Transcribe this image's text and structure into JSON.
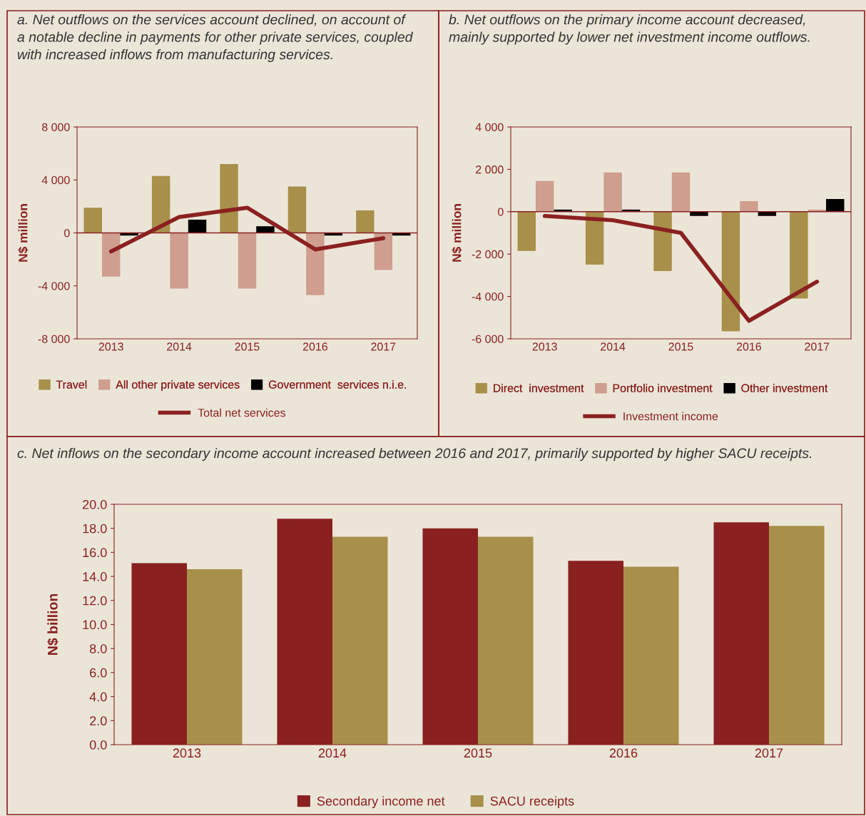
{
  "chart_data": [
    {
      "type": "bar",
      "title": "a. Net outflows on the services account declined, on account of a notable decline in payments for other private services, coupled with increased inflows from manufacturing services.",
      "ylabel": "N$ million",
      "categories": [
        "2013",
        "2014",
        "2015",
        "2016",
        "2017"
      ],
      "ylim": [
        -8000,
        8000
      ],
      "yticks": [
        {
          "value": -8000,
          "label": "-8 000"
        },
        {
          "value": -4000,
          "label": "-4 000"
        },
        0,
        {
          "value": 4000,
          "label": "4 000"
        },
        {
          "value": 8000,
          "label": "8 000"
        }
      ],
      "grid": false,
      "ref_lines": [
        {
          "axis": "y",
          "value": 0,
          "color": "#8b2020"
        }
      ],
      "legend": "bottom",
      "series": [
        {
          "name": "Travel",
          "color": "#a8904a",
          "values": [
            1900,
            4300,
            5200,
            3500,
            1700
          ]
        },
        {
          "name": "All other private services",
          "color": "#cf9e8e",
          "values": [
            -3300,
            -4200,
            -4200,
            -4700,
            -2800
          ]
        },
        {
          "name": "Government  services n.i.e.",
          "color": "#000000",
          "values": [
            -200,
            1000,
            500,
            -200,
            -200
          ]
        },
        {
          "name": "Total net services",
          "type": "line",
          "color": "#8b2020",
          "values": [
            -1400,
            1200,
            1900,
            -1250,
            -400
          ]
        }
      ]
    },
    {
      "type": "bar",
      "title": "b. Net outflows on the primary income account decreased, mainly supported by lower net investment income outflows.",
      "ylabel": "N$ million",
      "categories": [
        "2013",
        "2014",
        "2015",
        "2016",
        "2017"
      ],
      "ylim": [
        -6000,
        4000
      ],
      "yticks": [
        {
          "value": -6000,
          "label": "-6 000"
        },
        {
          "value": -4000,
          "label": "-4 000"
        },
        {
          "value": -2000,
          "label": "-2 000"
        },
        0,
        {
          "value": 2000,
          "label": "2 000"
        },
        {
          "value": 4000,
          "label": "4 000"
        }
      ],
      "grid": false,
      "ref_lines": [
        {
          "axis": "y",
          "value": 0,
          "color": "#8b2020"
        }
      ],
      "legend": "bottom",
      "series": [
        {
          "name": "Direct  investment",
          "color": "#a8904a",
          "values": [
            -1850,
            -2500,
            -2800,
            -5650,
            -4100
          ]
        },
        {
          "name": "Portfolio investment",
          "color": "#cf9e8e",
          "values": [
            1450,
            1850,
            1850,
            500,
            100
          ]
        },
        {
          "name": "Other investment",
          "color": "#000000",
          "values": [
            100,
            100,
            -200,
            -200,
            600
          ]
        },
        {
          "name": "Investment income",
          "type": "line",
          "color": "#8b2020",
          "values": [
            -200,
            -400,
            -1000,
            -5150,
            -3300
          ]
        }
      ]
    },
    {
      "type": "bar",
      "title": "c. Net inflows on the secondary income account increased between 2016 and 2017, primarily supported by higher SACU receipts.",
      "ylabel": "N$ billion",
      "categories": [
        "2013",
        "2014",
        "2015",
        "2016",
        "2017"
      ],
      "ylim": [
        0,
        20
      ],
      "yticks": [
        {
          "value": 0,
          "label": "0.0"
        },
        {
          "value": 2,
          "label": "2.0"
        },
        {
          "value": 4,
          "label": "4.0"
        },
        {
          "value": 6,
          "label": "6.0"
        },
        {
          "value": 8,
          "label": "8.0"
        },
        {
          "value": 10,
          "label": "10.0"
        },
        {
          "value": 12,
          "label": "12.0"
        },
        {
          "value": 14,
          "label": "14.0"
        },
        {
          "value": 16,
          "label": "16.0"
        },
        {
          "value": 18,
          "label": "18.0"
        },
        {
          "value": 20,
          "label": "20.0"
        }
      ],
      "grid": false,
      "legend": "bottom",
      "series": [
        {
          "name": "Secondary income net",
          "color": "#8a2020",
          "values": [
            15.1,
            18.8,
            18.0,
            15.3,
            18.5
          ]
        },
        {
          "name": "SACU receipts",
          "color": "#a8904a",
          "values": [
            14.6,
            17.3,
            17.3,
            14.8,
            18.2
          ]
        }
      ]
    }
  ]
}
